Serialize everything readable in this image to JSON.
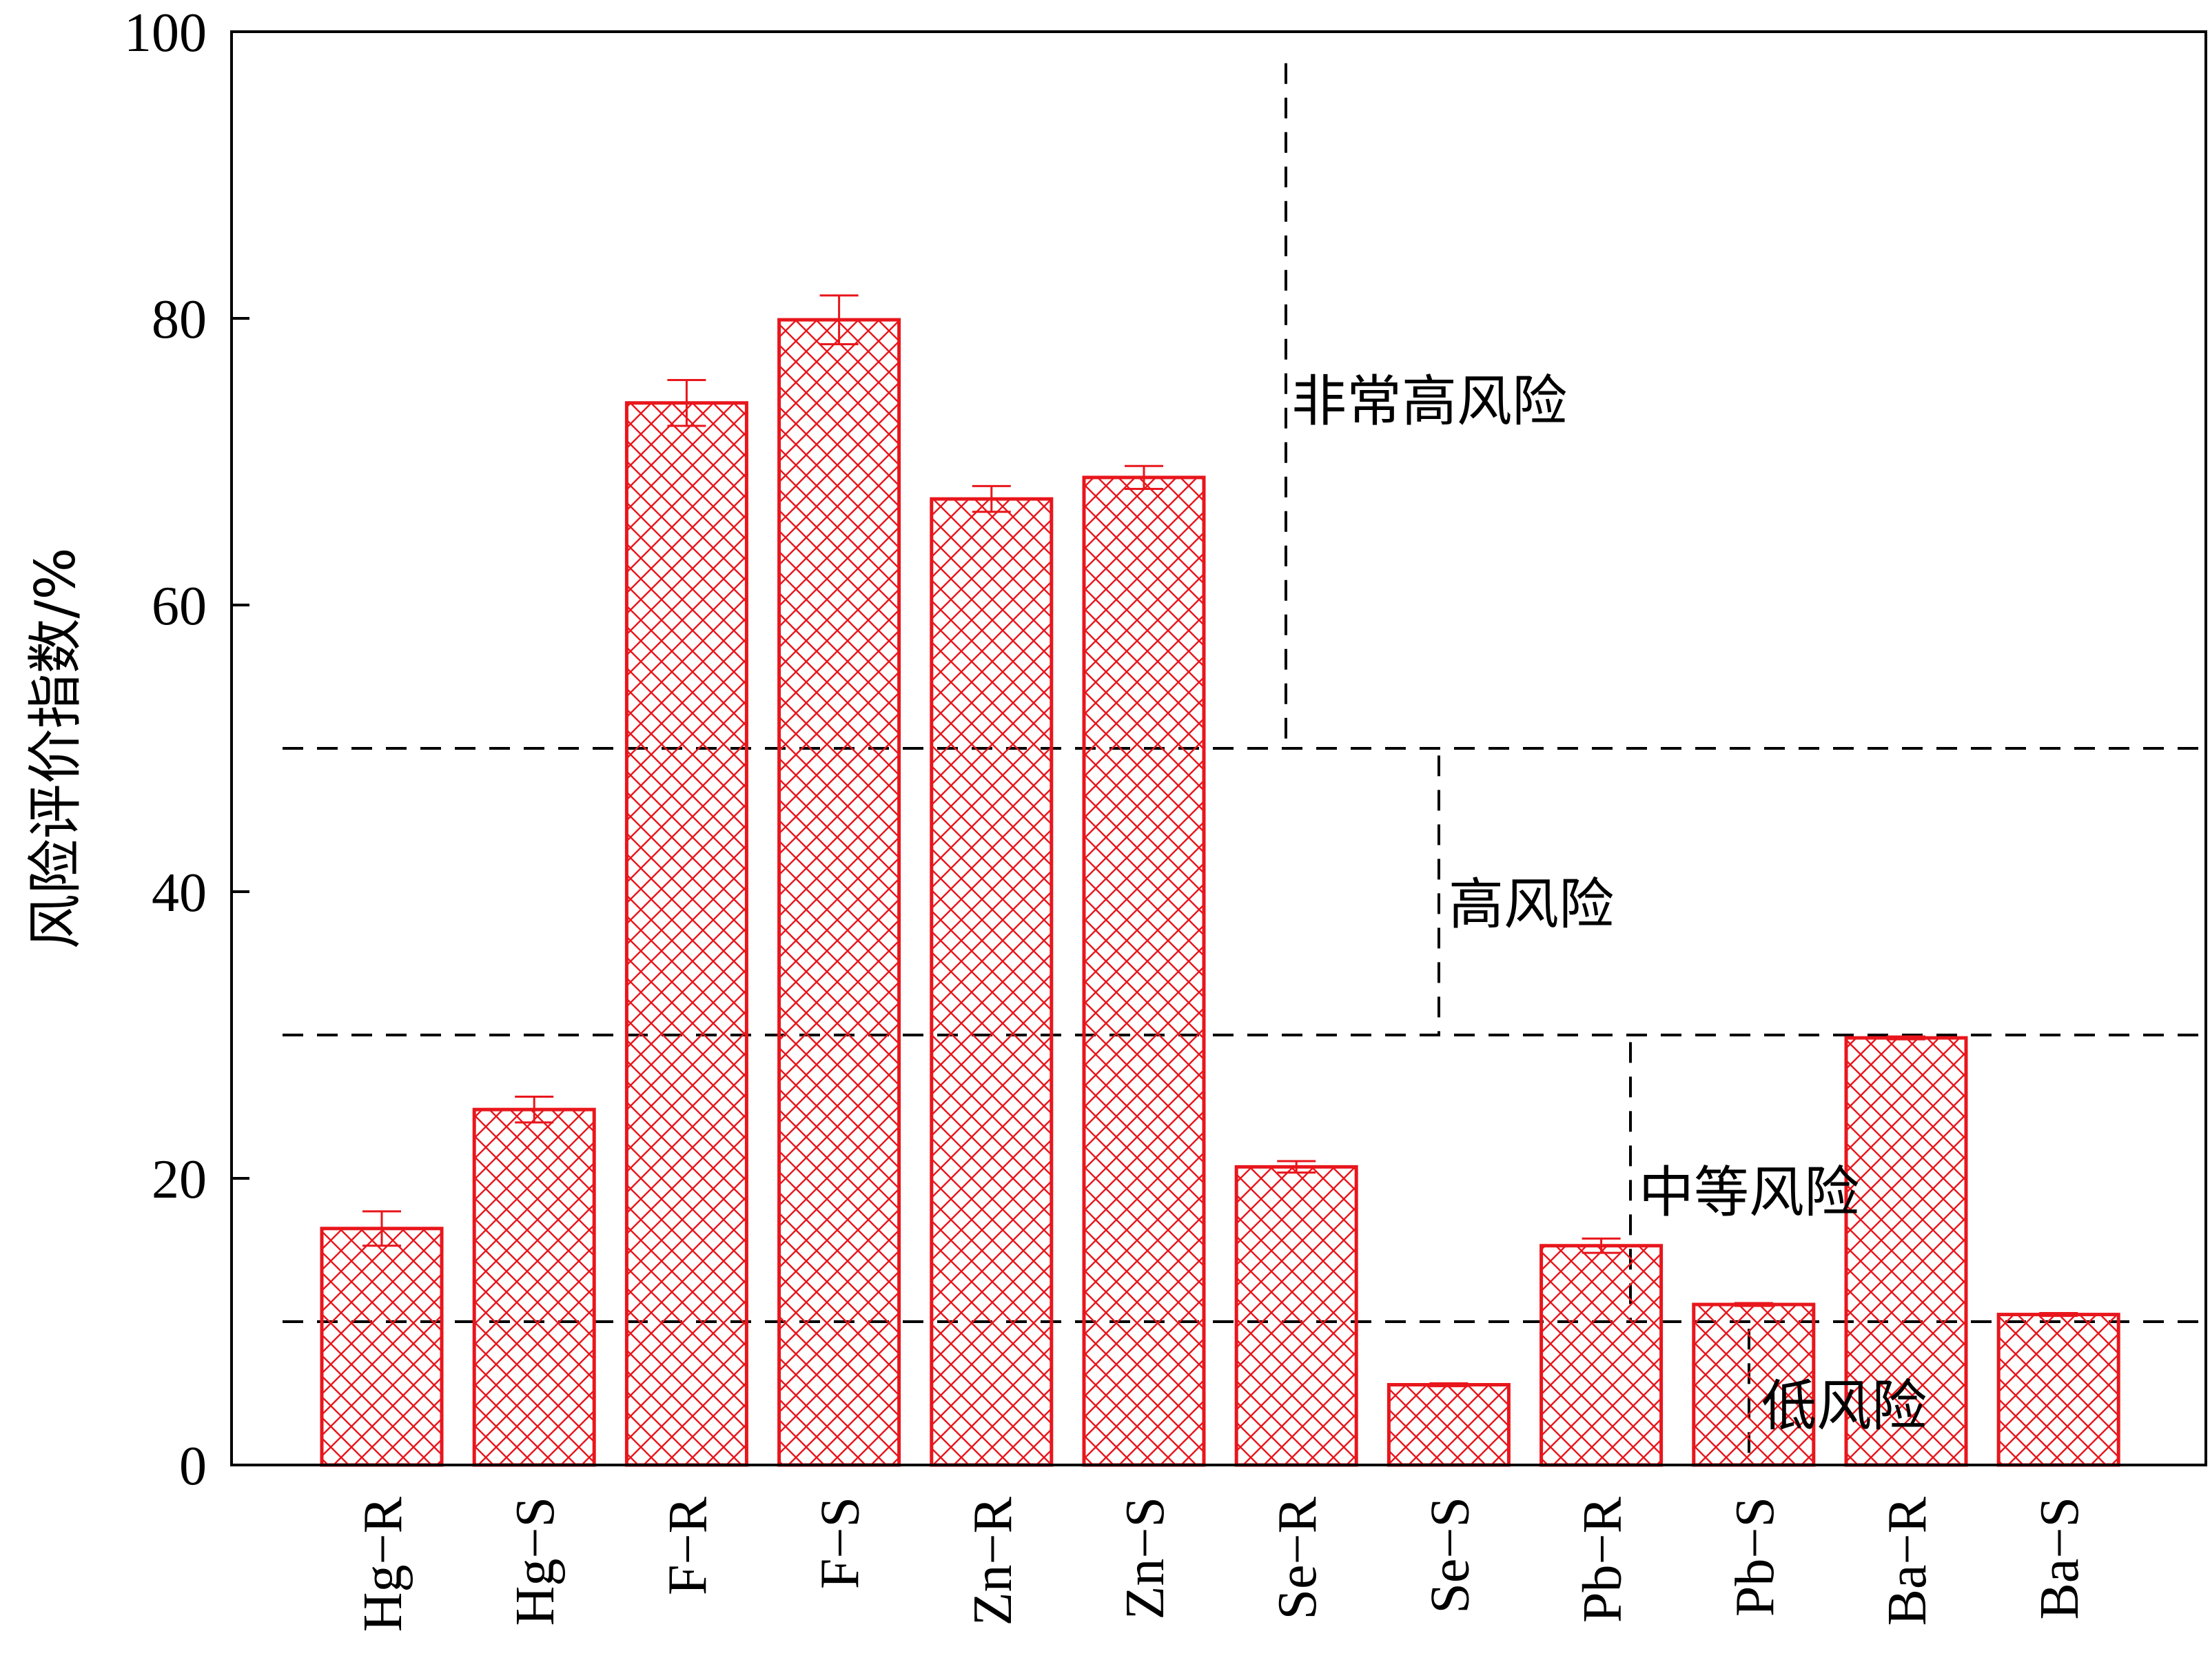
{
  "chart_data": {
    "type": "bar",
    "categories": [
      "Hg-R",
      "Hg-S",
      "F-R",
      "F-S",
      "Zn-R",
      "Zn-S",
      "Se-R",
      "Se-S",
      "Pb-R",
      "Pb-S",
      "Ba-R",
      "Ba-S"
    ],
    "values": [
      16.5,
      24.8,
      74.1,
      79.9,
      67.4,
      68.9,
      20.8,
      5.6,
      15.3,
      11.2,
      29.8,
      10.5
    ],
    "errors": [
      1.2,
      0.9,
      1.6,
      1.7,
      0.9,
      0.8,
      0.4,
      0.1,
      0.5,
      0.1,
      0.1,
      0.1
    ],
    "ylabel": "风险评价指数/%",
    "xlabel": "",
    "ylim": [
      0,
      100
    ],
    "yticks": [
      0,
      20,
      40,
      60,
      80,
      100
    ],
    "grid": false,
    "bar_style": "cross-hatched",
    "thresholds": [
      10,
      30,
      50
    ],
    "zones": [
      "低风险",
      "中等风险",
      "高风险",
      "非常高风险"
    ],
    "colors": {
      "bar": "#e8161c",
      "axis": "#000000",
      "threshold": "#000000"
    }
  }
}
